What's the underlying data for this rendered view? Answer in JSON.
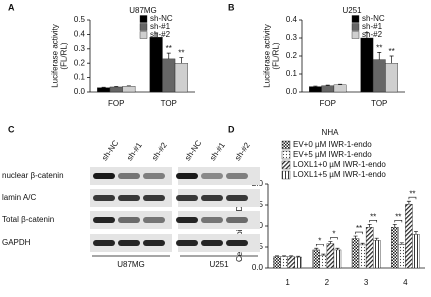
{
  "chart_data": [
    {
      "type": "bar",
      "label": "A",
      "title": "U87MG",
      "ylabel": [
        "Luciferase activity",
        "(FL/RL)"
      ],
      "categories": [
        "FOP",
        "TOP"
      ],
      "ylim": [
        0,
        0.5
      ],
      "yticks": [
        {
          "value": 0,
          "label": "0.0"
        },
        0.1,
        0.2,
        0.3,
        0.4,
        0.5
      ],
      "series": [
        {
          "name": "sh-NC",
          "color": "#000000",
          "values": [
            0.03,
            0.38
          ],
          "errors": [
            0.003,
            0.03
          ]
        },
        {
          "name": "sh-#1",
          "color": "#666666",
          "values": [
            0.035,
            0.23
          ],
          "errors": [
            0.003,
            0.04
          ],
          "significance": [
            null,
            "**"
          ]
        },
        {
          "name": "sh-#2",
          "color": "#cfcfcf",
          "values": [
            0.04,
            0.2
          ],
          "errors": [
            0.003,
            0.04
          ],
          "significance": [
            null,
            "**"
          ]
        }
      ]
    },
    {
      "type": "bar",
      "label": "B",
      "title": "U251",
      "ylabel": [
        "Luciferase activity",
        "(FL/RL)"
      ],
      "categories": [
        "FOP",
        "TOP"
      ],
      "ylim": [
        0,
        0.4
      ],
      "yticks": [
        {
          "value": 0,
          "label": "0.0"
        },
        0.1,
        0.2,
        0.3,
        0.4
      ],
      "series": [
        {
          "name": "sh-NC",
          "color": "#000000",
          "values": [
            0.03,
            0.3
          ],
          "errors": [
            0.003,
            0.03
          ]
        },
        {
          "name": "sh-#1",
          "color": "#666666",
          "values": [
            0.035,
            0.18
          ],
          "errors": [
            0.003,
            0.04
          ],
          "significance": [
            null,
            "**"
          ]
        },
        {
          "name": "sh-#2",
          "color": "#cfcfcf",
          "values": [
            0.04,
            0.16
          ],
          "errors": [
            0.003,
            0.04
          ],
          "significance": [
            null,
            "**"
          ]
        }
      ]
    },
    {
      "type": "bar",
      "label": "D",
      "title": "NHA",
      "ylabel": [
        "Cell viability/OD 450"
      ],
      "categories": [
        "1",
        "2",
        "3",
        "4"
      ],
      "ylim": [
        0,
        2.0
      ],
      "yticks": [
        {
          "value": 0,
          "label": "0.0"
        },
        0.5,
        {
          "value": 1,
          "label": "1.0"
        },
        1.5,
        {
          "value": 2,
          "label": "2.0"
        }
      ],
      "series": [
        {
          "name": "EV+0 µM IWR-1-endo",
          "color": "#333333",
          "hatch": "checker",
          "values": [
            0.27,
            0.43,
            0.7,
            0.97
          ],
          "errors": [
            0.02,
            0.04,
            0.06,
            0.07
          ]
        },
        {
          "name": "EV+5 µM IWR-1-endo",
          "color": "#333333",
          "hatch": "dots",
          "values": [
            0.27,
            0.3,
            0.55,
            0.56
          ],
          "errors": [
            0.02,
            0.03,
            0.04,
            0.04
          ],
          "significance": [
            null,
            "*",
            "**",
            "**"
          ]
        },
        {
          "name": "LOXL1+0 µM IWR-1-endo",
          "color": "#333333",
          "hatch": "diagonal",
          "values": [
            0.27,
            0.58,
            0.97,
            1.52
          ],
          "errors": [
            0.02,
            0.05,
            0.07,
            0.07
          ]
        },
        {
          "name": "LOXL1+5 µM IWR-1-endo",
          "color": "#333333",
          "hatch": "vertical",
          "values": [
            0.26,
            0.43,
            0.66,
            0.8
          ],
          "errors": [
            0.02,
            0.04,
            0.05,
            0.07
          ],
          "significance": [
            null,
            "*",
            "**",
            "**"
          ]
        }
      ]
    }
  ],
  "blot": {
    "label": "C",
    "lanes": [
      "sh-NC",
      "sh-#1",
      "sh-#2",
      "sh-NC",
      "sh-#1",
      "sh-#2"
    ],
    "rows": [
      "nuclear β-catenin",
      "lamin A/C",
      "Total β-catenin",
      "GAPDH"
    ],
    "groups": [
      "U87MG",
      "U251"
    ]
  }
}
